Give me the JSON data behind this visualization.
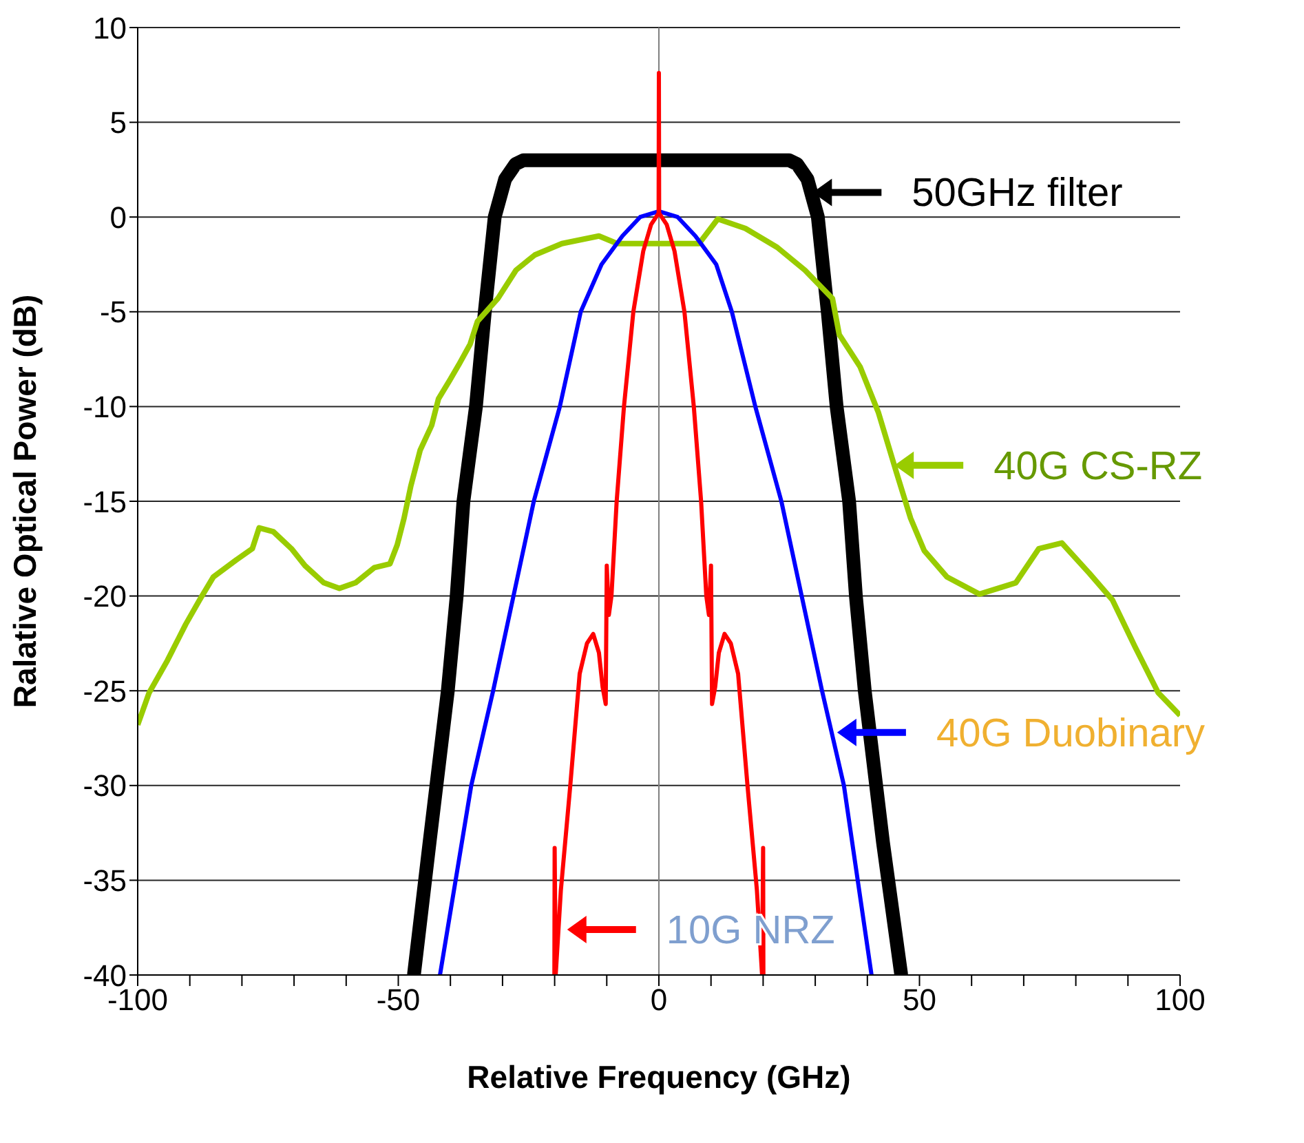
{
  "chart_data": {
    "type": "line",
    "xlabel": "Relative Frequency (GHz)",
    "ylabel": "Ralative Optical Power (dB)",
    "xlim": [
      -100,
      100
    ],
    "xticks": [
      -100,
      {
        "value": -90,
        "label": null
      },
      {
        "value": -80,
        "label": null
      },
      {
        "value": -70,
        "label": null
      },
      {
        "value": -60,
        "label": null
      },
      -50,
      {
        "value": -40,
        "label": null
      },
      {
        "value": -30,
        "label": null
      },
      {
        "value": -20,
        "label": null
      },
      {
        "value": -10,
        "label": null
      },
      0,
      {
        "value": 10,
        "label": null
      },
      {
        "value": 20,
        "label": null
      },
      {
        "value": 30,
        "label": null
      },
      {
        "value": 40,
        "label": null
      },
      50,
      {
        "value": 60,
        "label": null
      },
      {
        "value": 70,
        "label": null
      },
      {
        "value": 80,
        "label": null
      },
      {
        "value": 90,
        "label": null
      },
      100
    ],
    "ylim": [
      -40,
      10
    ],
    "yticks": [
      -40,
      -35,
      -30,
      -25,
      -20,
      -15,
      -10,
      -5,
      0,
      5,
      10
    ],
    "grid": "y",
    "legend": false,
    "marker": "none",
    "line_style": "solid",
    "ref_lines": [
      {
        "axis": "x",
        "value": 0,
        "color": "#808080"
      }
    ],
    "series": [
      {
        "color": "#000000",
        "x": [
          -47,
          -44,
          -40.5,
          -38.8,
          -37.5,
          -35.1,
          -33.4,
          -31.5,
          -29.5,
          -27.5,
          -26,
          25,
          26.5,
          28.5,
          30.5,
          32.4,
          34.1,
          36.5,
          37.8,
          39.5,
          43,
          46.5
        ],
        "values": [
          -40,
          -33,
          -25,
          -20,
          -15,
          -10,
          -5,
          0,
          2,
          2.8,
          3,
          3,
          2.8,
          2,
          0,
          -5,
          -10,
          -15,
          -20,
          -25,
          -33,
          -40
        ]
      },
      {
        "color": "#99cc00",
        "x": [
          -100,
          -97.8,
          -94.3,
          -90.8,
          -88.1,
          -85.5,
          -81.1,
          -78,
          -76.7,
          -74,
          -70.5,
          -67.9,
          -64.3,
          -61.3,
          -58.2,
          -54.6,
          -51.6,
          -50.2,
          -48.9,
          -47.6,
          -45.8,
          -43.6,
          -42.3,
          -40.1,
          -38.4,
          -36.2,
          -34.8,
          -30.9,
          -27.4,
          -23.8,
          -18.6,
          -11.5,
          -8,
          0,
          7.7,
          11.3,
          16.6,
          22.7,
          28,
          33.3,
          34.6,
          38.6,
          42.1,
          45.6,
          48.3,
          50.9,
          55.3,
          61.5,
          68.5,
          72.9,
          77.3,
          82.6,
          87,
          91.4,
          95.8,
          100
        ],
        "values": [
          -26.8,
          -25.1,
          -23.4,
          -21.5,
          -20.2,
          -19,
          -18.1,
          -17.5,
          -16.4,
          -16.6,
          -17.5,
          -18.4,
          -19.3,
          -19.6,
          -19.3,
          -18.5,
          -18.3,
          -17.3,
          -15.9,
          -14.2,
          -12.3,
          -11,
          -9.6,
          -8.6,
          -7.8,
          -6.7,
          -5.5,
          -4.3,
          -2.8,
          -2,
          -1.4,
          -1,
          -1.4,
          -1.4,
          -1.4,
          -0.1,
          -0.6,
          -1.6,
          -2.8,
          -4.3,
          -6.2,
          -7.9,
          -10.3,
          -13.5,
          -15.9,
          -17.6,
          -19,
          -19.9,
          -19.3,
          -17.5,
          -17.2,
          -18.8,
          -20.2,
          -22.7,
          -25.1,
          -26.3
        ]
      },
      {
        "color": "#0000ff",
        "x": [
          -42,
          -36,
          -31.8,
          -27.9,
          -24,
          -19,
          -15,
          -11,
          -7,
          -3.6,
          0,
          3.6,
          7,
          11,
          14,
          18.5,
          23.5,
          27.4,
          31.3,
          35.5,
          40.8
        ],
        "values": [
          -40,
          -30,
          -25,
          -20,
          -15,
          -10,
          -5,
          -2.5,
          -1,
          0,
          0.3,
          0,
          -1,
          -2.5,
          -5,
          -10,
          -15,
          -20,
          -25,
          -30,
          -40
        ]
      },
      {
        "color": "#ff0000",
        "x": [
          -20.05,
          -20,
          -19.8,
          -18.8,
          -17,
          -15.2,
          -13.8,
          -12.6,
          -11.5,
          -10.8,
          -10.2,
          -10,
          -9.6,
          -9.1,
          -8.1,
          -6.7,
          -4.9,
          -3,
          -1.5,
          -0.05,
          0,
          0.05,
          1.5,
          3,
          4.9,
          6.7,
          8.1,
          9.1,
          9.6,
          10,
          10.2,
          10.8,
          11.5,
          12.6,
          13.8,
          15.2,
          17,
          18.8,
          19.8,
          20,
          20.05
        ],
        "values": [
          -40,
          -33.3,
          -40,
          -35.5,
          -30,
          -24.1,
          -22.5,
          -22,
          -23,
          -24.8,
          -25.7,
          -18.4,
          -21,
          -20,
          -15,
          -10,
          -5,
          -1.8,
          -0.4,
          0.2,
          7.6,
          0.2,
          -0.4,
          -1.8,
          -5,
          -10,
          -15,
          -20,
          -21,
          -18.4,
          -25.7,
          -24.8,
          -23,
          -22,
          -22.5,
          -24.1,
          -30,
          -35.5,
          -40,
          -33.3,
          -40
        ]
      }
    ],
    "annotations": [
      {
        "text": "50GHz filter",
        "x": 29.5,
        "y": 1.3
      },
      {
        "text": "40G CS-RZ",
        "x": 45.2,
        "y": -13.1
      },
      {
        "text": "40G Duobinary",
        "x": 34.2,
        "y": -27.2
      },
      {
        "text": "10G NRZ",
        "x": -17.6,
        "y": -37.6
      }
    ]
  }
}
